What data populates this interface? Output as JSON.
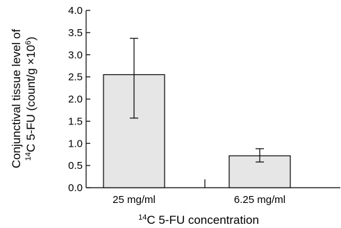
{
  "chart_data": {
    "type": "bar",
    "categories": [
      "25 mg/ml",
      "6.25 mg/ml"
    ],
    "values": [
      2.55,
      0.72
    ],
    "error_bars": [
      {
        "low": 1.57,
        "high": 3.37
      },
      {
        "low": 0.58,
        "high": 0.88
      }
    ],
    "ylim": [
      0,
      4.0
    ],
    "yticks": [
      "0.0",
      "0.5",
      "1.0",
      "1.5",
      "2.0",
      "2.5",
      "3.0",
      "3.5",
      "4.0"
    ],
    "ylabel": {
      "line1": "Conjunctival tissue level of",
      "line2_sup": "14",
      "line2_main": "C 5-FU (count/g ×10",
      "line2_exp": "6",
      "line2_end": ")"
    },
    "xlabel": {
      "sup": "14",
      "main": "C 5-FU concentration"
    },
    "bar_color": "#e6e6e6",
    "grid": false,
    "legend": "none"
  }
}
